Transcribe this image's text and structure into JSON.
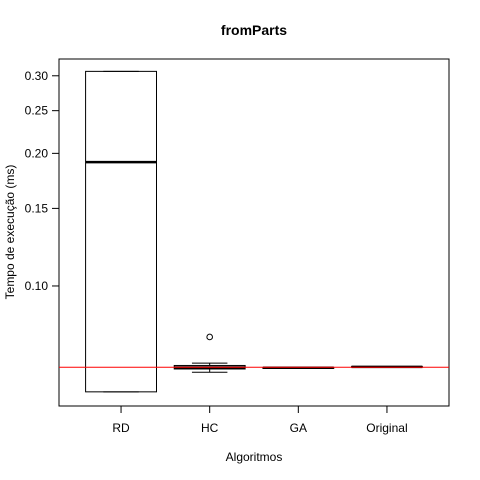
{
  "chart_data": {
    "type": "boxplot",
    "title": "fromParts",
    "xlabel": "Algoritmos",
    "ylabel": "Tempo de execução (ms)",
    "y_scale": "log",
    "ylim": [
      0.0534,
      0.3275
    ],
    "y_ticks": [
      {
        "value": 0.1,
        "label": "0.10"
      },
      {
        "value": 0.15,
        "label": "0.15"
      },
      {
        "value": 0.2,
        "label": "0.20"
      },
      {
        "value": 0.25,
        "label": "0.25"
      },
      {
        "value": 0.3,
        "label": "0.30"
      }
    ],
    "categories": [
      "RD",
      "HC",
      "GA",
      "Original"
    ],
    "boxes": [
      {
        "name": "RD",
        "min": 0.0575,
        "q1": 0.0575,
        "median": 0.1911,
        "q3": 0.307,
        "max": 0.307,
        "outliers": []
      },
      {
        "name": "HC",
        "min": 0.0637,
        "q1": 0.0648,
        "median": 0.0653,
        "q3": 0.066,
        "max": 0.0668,
        "outliers": [
          0.0766
        ]
      },
      {
        "name": "GA",
        "min": 0.0652,
        "q1": 0.0652,
        "median": 0.0652,
        "q3": 0.0652,
        "max": 0.0652,
        "outliers": []
      },
      {
        "name": "Original",
        "min": 0.0654,
        "q1": 0.0654,
        "median": 0.0655,
        "q3": 0.0656,
        "max": 0.0656,
        "outliers": []
      }
    ],
    "reference_line": {
      "value": 0.0654,
      "color": "#ff0000"
    },
    "grid": false,
    "legend": "none"
  }
}
